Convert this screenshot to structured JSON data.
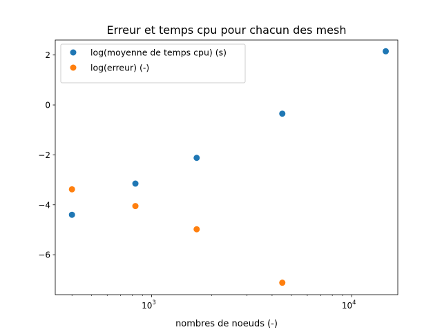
{
  "chart_data": {
    "type": "scatter",
    "title": "Erreur et temps cpu pour chacun des mesh",
    "xlabel": "nombres de noeuds (-)",
    "ylabel": "",
    "xscale": "log",
    "xlim": [
      330,
      17000
    ],
    "ylim": [
      -7.6,
      2.6
    ],
    "x_ticks": [
      {
        "value": 1000,
        "base": "10",
        "exp": "3"
      },
      {
        "value": 10000,
        "base": "10",
        "exp": "4"
      }
    ],
    "y_ticks": [
      {
        "value": 2,
        "label": "2"
      },
      {
        "value": 0,
        "label": "0"
      },
      {
        "value": -2,
        "label": "−2"
      },
      {
        "value": -4,
        "label": "−4"
      },
      {
        "value": -6,
        "label": "−6"
      }
    ],
    "grid": false,
    "legend_position": "top-left",
    "series": [
      {
        "name": "log(moyenne de temps cpu) (s)",
        "color": "#1f77b4",
        "x": [
          400,
          830,
          1680,
          4500,
          14800
        ],
        "y": [
          -4.4,
          -3.15,
          -2.12,
          -0.35,
          2.15
        ]
      },
      {
        "name": "log(erreur) (-)",
        "color": "#ff7f0e",
        "x": [
          400,
          830,
          1680,
          4500
        ],
        "y": [
          -3.38,
          -4.05,
          -4.98,
          -7.12
        ]
      }
    ]
  }
}
